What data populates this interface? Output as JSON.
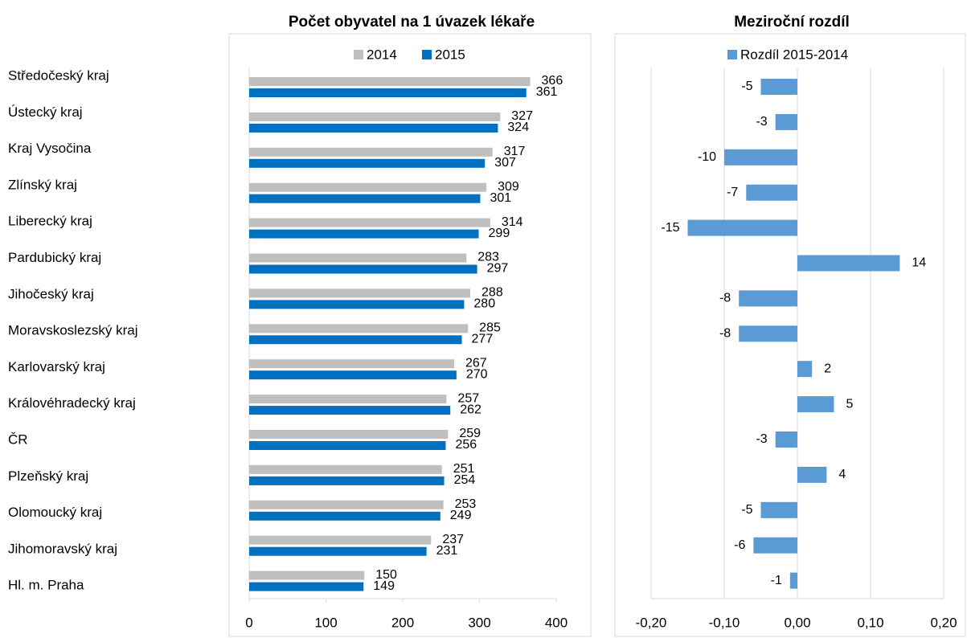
{
  "chart_data": [
    {
      "type": "hbar",
      "title": "Počet obyvatel na 1 úvazek lékaře",
      "categories": [
        "Středočeský kraj",
        "Ústecký kraj",
        "Kraj Vysočina",
        "Zlínský kraj",
        "Liberecký kraj",
        "Pardubický kraj",
        "Jihočeský kraj",
        "Moravskoslezský kraj",
        "Karlovarský kraj",
        "Královéhradecký kraj",
        "ČR",
        "Plzeňský kraj",
        "Olomoucký kraj",
        "Jihomoravský kraj",
        "Hl. m. Praha"
      ],
      "series": [
        {
          "name": "2014",
          "color": "#bfbfbf",
          "values": [
            366,
            327,
            317,
            309,
            314,
            283,
            288,
            285,
            267,
            257,
            259,
            251,
            253,
            237,
            150
          ]
        },
        {
          "name": "2015",
          "color": "#0070c0",
          "values": [
            361,
            324,
            307,
            301,
            299,
            297,
            280,
            277,
            270,
            262,
            256,
            254,
            249,
            231,
            149
          ]
        }
      ],
      "xlim": [
        0,
        400
      ],
      "xticks": [
        0,
        100,
        200,
        300,
        400
      ],
      "grid": false,
      "legend": "top"
    },
    {
      "type": "hbar-diff",
      "title": "Meziroční rozdíl",
      "series": [
        {
          "name": "Rozdíl 2015-2014",
          "color": "#5b9bd5",
          "values": [
            -0.05,
            -0.03,
            -0.1,
            -0.07,
            -0.15,
            0.14,
            -0.08,
            -0.08,
            0.02,
            0.05,
            -0.03,
            0.04,
            -0.05,
            -0.06,
            -0.01
          ],
          "value_labels": [
            "-5",
            "-3",
            "-10",
            "-7",
            "-15",
            "14",
            "-8",
            "-8",
            "2",
            "5",
            "-3",
            "4",
            "-5",
            "-6",
            "-1"
          ]
        }
      ],
      "xlim": [
        -0.2,
        0.2
      ],
      "xticks": [
        {
          "value": -0.2,
          "label": "-0,20"
        },
        {
          "value": -0.1,
          "label": "-0,10"
        },
        {
          "value": 0,
          "label": "0,00"
        },
        {
          "value": 0.1,
          "label": "0,10"
        },
        {
          "value": 0.2,
          "label": "0,20"
        }
      ],
      "grid": true,
      "legend": "top",
      "negative_color": "#ff0000"
    }
  ]
}
